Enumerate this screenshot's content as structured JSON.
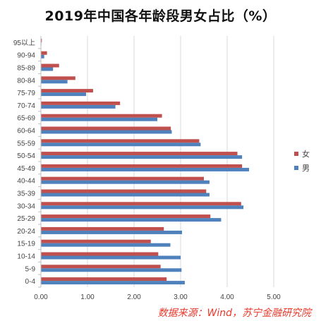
{
  "chart_data": {
    "type": "bar",
    "orientation": "horizontal",
    "title": "2019年中国各年龄段男女占比（%）",
    "categories": [
      "0-4",
      "5-9",
      "10-14",
      "15-19",
      "20-24",
      "25-29",
      "30-34",
      "35-39",
      "40-44",
      "45-49",
      "50-54",
      "55-59",
      "60-64",
      "65-69",
      "70-74",
      "75-79",
      "80-84",
      "85-89",
      "90-94",
      "95以上"
    ],
    "series": [
      {
        "name": "女",
        "color": "#c0504d",
        "values": [
          2.7,
          2.57,
          2.52,
          2.36,
          2.64,
          3.64,
          4.3,
          3.55,
          3.5,
          4.32,
          4.22,
          3.4,
          2.79,
          2.6,
          1.7,
          1.12,
          0.74,
          0.39,
          0.13,
          0.02
        ]
      },
      {
        "name": "男",
        "color": "#4f81bd",
        "values": [
          3.09,
          3.02,
          3.0,
          2.78,
          3.03,
          3.87,
          4.35,
          3.62,
          3.62,
          4.47,
          4.32,
          3.43,
          2.81,
          2.5,
          1.6,
          0.97,
          0.57,
          0.26,
          0.07,
          0.01
        ]
      }
    ],
    "xlim": [
      0,
      5
    ],
    "xticks": [
      "0.00",
      "1.00",
      "2.00",
      "3.00",
      "4.00",
      "5.00"
    ],
    "grid": true,
    "legend_position": "right"
  },
  "source_note": "数据来源：Wind，苏宁金融研究院"
}
